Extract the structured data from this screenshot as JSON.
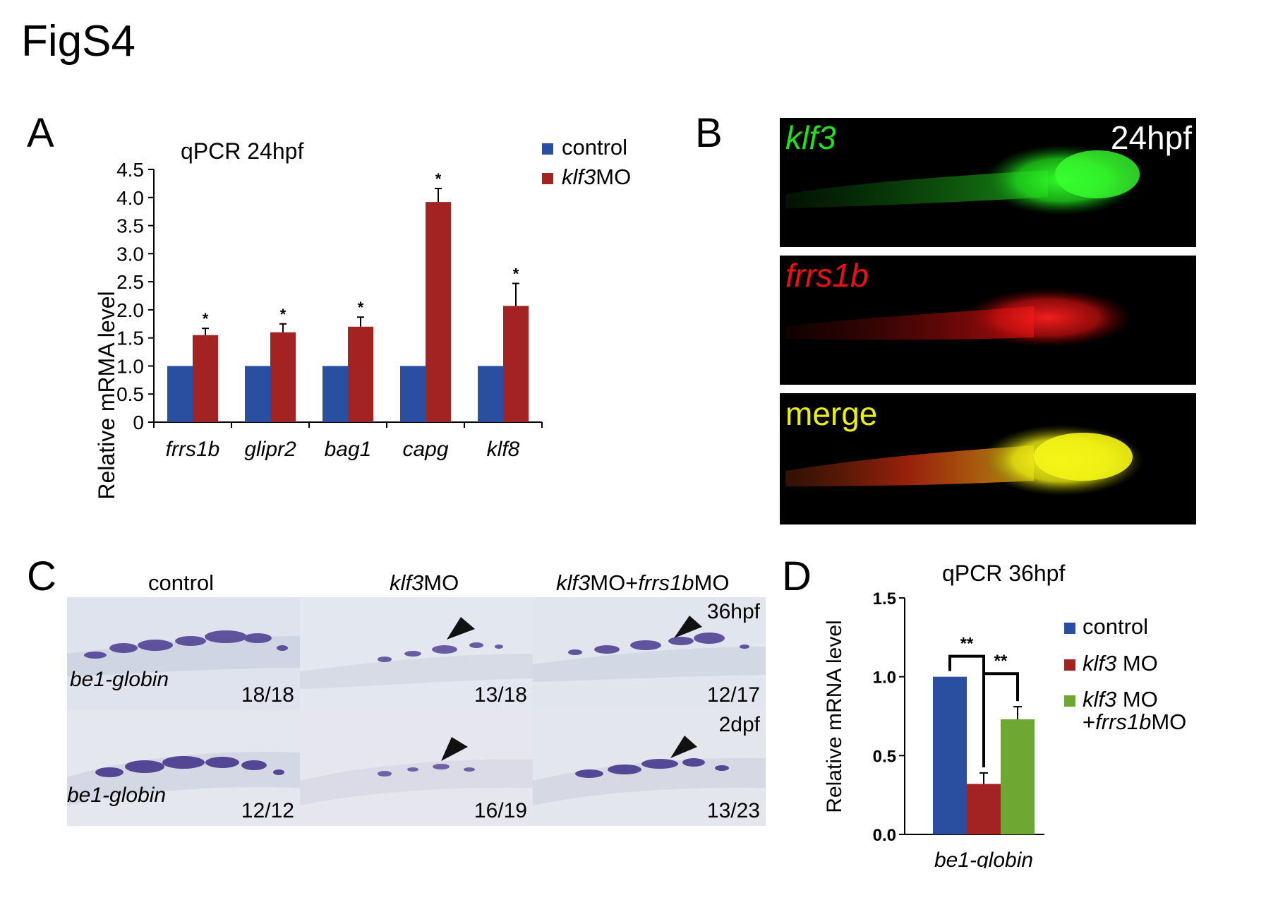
{
  "figure": {
    "title": "FigS4"
  },
  "panels": {
    "A": {
      "letter": "A"
    },
    "B": {
      "letter": "B",
      "stage": "24hpf",
      "rows": [
        {
          "label": "klf3",
          "color": "#22e01e"
        },
        {
          "label": "frrs1b",
          "color": "#ee1010"
        },
        {
          "label": "merge",
          "color": "#eaf000"
        }
      ]
    },
    "C": {
      "letter": "C",
      "columns": [
        {
          "label": "control"
        },
        {
          "label_parts": [
            "klf3",
            "MO"
          ]
        },
        {
          "label_parts": [
            "klf3",
            "MO+",
            "frrs1b",
            "MO"
          ]
        }
      ],
      "rows": [
        {
          "stage": "36hpf",
          "gene": "be1-globin",
          "counts": [
            "18/18",
            "13/18",
            "12/17"
          ]
        },
        {
          "stage": "2dpf",
          "gene": "be1-globin",
          "counts": [
            "12/12",
            "16/19",
            "13/23"
          ]
        }
      ]
    },
    "D": {
      "letter": "D"
    }
  },
  "chart_data": [
    {
      "panel": "A",
      "type": "bar",
      "title": "qPCR   24hpf",
      "ylabel": "Relative mRMA level",
      "ylim": [
        0,
        4.5
      ],
      "yticks": [
        "0",
        "0.5",
        "1.0",
        "1.5",
        "2.0",
        "2.5",
        "3.0",
        "3.5",
        "4.0",
        "4.5"
      ],
      "categories": [
        "frrs1b",
        "glipr2",
        "bag1",
        "capg",
        "klf8"
      ],
      "series": [
        {
          "name": "control",
          "color": "#2a4fa0",
          "values": [
            1.0,
            1.0,
            1.0,
            1.0,
            1.0
          ],
          "errors": [
            0,
            0,
            0,
            0,
            0
          ]
        },
        {
          "name": "klf3MO",
          "name_parts": [
            "klf3",
            "MO"
          ],
          "color": "#a32222",
          "values": [
            1.55,
            1.6,
            1.7,
            3.92,
            2.07
          ],
          "errors": [
            0.12,
            0.15,
            0.17,
            0.24,
            0.4
          ]
        }
      ],
      "significance": [
        "*",
        "*",
        "*",
        "*",
        "*"
      ],
      "legend_position": "top-right",
      "grid": false
    },
    {
      "panel": "D",
      "type": "bar",
      "title": "qPCR   36hpf",
      "ylabel": "Relative mRNA level",
      "ylim": [
        0,
        1.5
      ],
      "yticks": [
        "0.0",
        "0.5",
        "1.0",
        "1.5"
      ],
      "categories": [
        "be1-globin"
      ],
      "series": [
        {
          "name": "control",
          "color": "#2a4fa0",
          "values": [
            1.0
          ],
          "errors": [
            0
          ]
        },
        {
          "name": "klf3 MO",
          "color": "#a32222",
          "values": [
            0.32
          ],
          "errors": [
            0.07
          ]
        },
        {
          "name": "klf3 MO +frrs1bMO",
          "color": "#6ea832",
          "values": [
            0.73
          ],
          "errors": [
            0.08
          ]
        }
      ],
      "legend": [
        {
          "parts": [
            "control"
          ]
        },
        {
          "parts": [
            "klf3",
            " MO"
          ]
        },
        {
          "parts": [
            "klf3",
            " MO"
          ],
          "line2": [
            "+",
            "frrs1b",
            "MO"
          ]
        }
      ],
      "significance": [
        "**",
        "**"
      ],
      "legend_position": "right",
      "grid": false
    }
  ]
}
